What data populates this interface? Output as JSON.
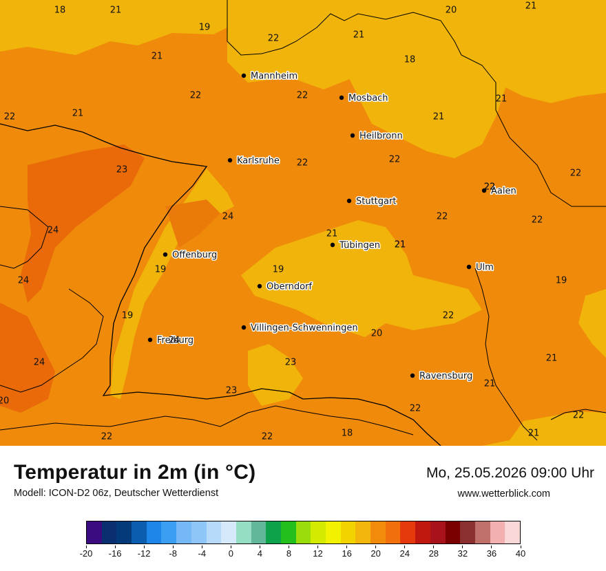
{
  "map": {
    "cities": [
      {
        "name": "Mannheim"
      },
      {
        "name": "Mosbach"
      },
      {
        "name": "Heilbronn"
      },
      {
        "name": "Karlsruhe"
      },
      {
        "name": "Stuttgart"
      },
      {
        "name": "Aalen"
      },
      {
        "name": "Tübingen"
      },
      {
        "name": "Offenburg"
      },
      {
        "name": "Ulm"
      },
      {
        "name": "Oberndorf"
      },
      {
        "name": "Villingen-Schwenningen"
      },
      {
        "name": "Freiburg"
      },
      {
        "name": "Ravensburg"
      }
    ],
    "temperature_labels": [
      "18",
      "21",
      "19",
      "22",
      "21",
      "20",
      "21",
      "22",
      "18",
      "21",
      "22",
      "22",
      "22",
      "21",
      "22",
      "21",
      "21",
      "22",
      "23",
      "22",
      "22",
      "24",
      "22",
      "21",
      "21",
      "22",
      "24",
      "19",
      "21",
      "24",
      "19",
      "19",
      "19",
      "24",
      "20",
      "24",
      "23",
      "21",
      "21",
      "23",
      "20",
      "22",
      "22",
      "22",
      "18",
      "21",
      "22",
      "22"
    ]
  },
  "footer": {
    "title": "Temperatur in 2m (in °C)",
    "model": "Modell: ICON-D2 06z, Deutscher Wetterdienst",
    "datetime": "Mo, 25.05.2026 09:00 Uhr",
    "website": "www.wetterblick.com"
  },
  "colorscale": {
    "colors": [
      "#3a0c80",
      "#0a2f70",
      "#053a7a",
      "#0b5db0",
      "#1e86e8",
      "#3a9ef2",
      "#74b8f5",
      "#8fc6f7",
      "#b8dafa",
      "#d6e9fb",
      "#95ddc3",
      "#62b69a",
      "#0ea34a",
      "#23bf1d",
      "#9bdc0c",
      "#d4ea00",
      "#f2f200",
      "#f2d300",
      "#f2b60c",
      "#f28a0c",
      "#f2700c",
      "#e63a0c",
      "#c0180f",
      "#a8121a",
      "#7a0000",
      "#8a3030",
      "#c0706a",
      "#f2b0b0",
      "#fad8d8"
    ],
    "tick_labels": [
      "-20",
      "-16",
      "-12",
      "-8",
      "-4",
      "0",
      "4",
      "8",
      "12",
      "16",
      "20",
      "24",
      "28",
      "32",
      "36",
      "40"
    ]
  }
}
